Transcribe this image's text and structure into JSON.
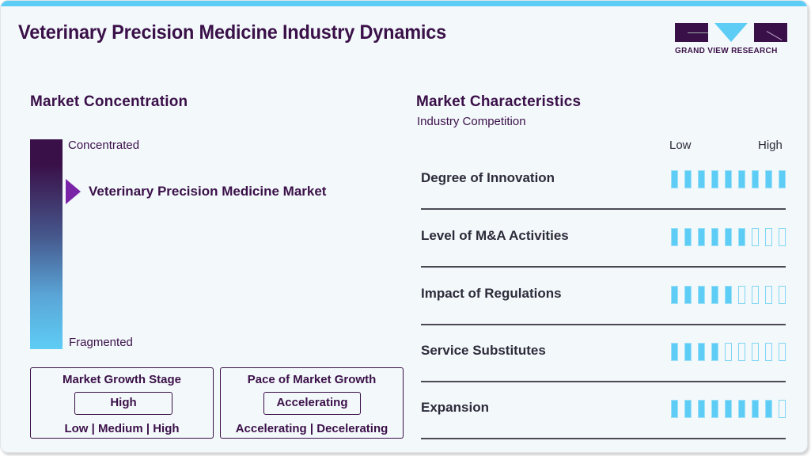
{
  "header": {
    "title": "Veterinary Precision Medicine Industry Dynamics",
    "logo_text": "GRAND VIEW RESEARCH"
  },
  "concentration": {
    "title": "Market Concentration",
    "top_label": "Concentrated",
    "bottom_label": "Fragmented",
    "market_label": "Veterinary Precision Medicine Market"
  },
  "growth_stage": {
    "title": "Market Growth Stage",
    "value": "High",
    "options": "Low | Medium | High"
  },
  "pace": {
    "title": "Pace of Market Growth",
    "value": "Accelerating",
    "options": "Accelerating | Decelerating"
  },
  "characteristics": {
    "title": "Market Characteristics",
    "subtitle": "Industry Competition",
    "low_label": "Low",
    "high_label": "High",
    "max": 9,
    "rows": [
      {
        "label": "Degree of Innovation",
        "filled": 9
      },
      {
        "label": "Level of M&A Activities",
        "filled": 6
      },
      {
        "label": "Impact of Regulations",
        "filled": 5
      },
      {
        "label": "Service Substitutes",
        "filled": 4
      },
      {
        "label": "Expansion",
        "filled": 8
      }
    ]
  },
  "colors": {
    "brand_dark": "#3a1048",
    "brand_light": "#5ecdf5",
    "arrow": "#7a24a8"
  }
}
